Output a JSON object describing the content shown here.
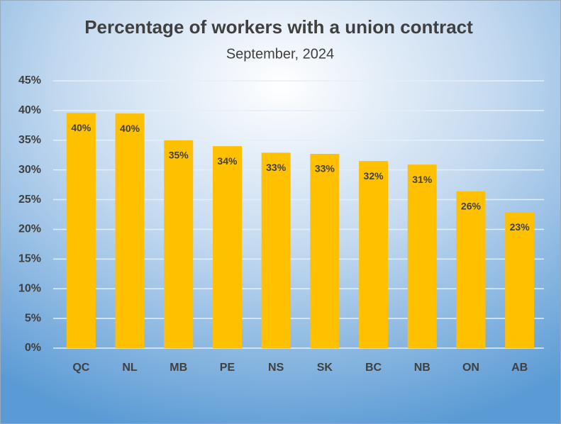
{
  "chart_data": {
    "type": "bar",
    "title": "Percentage of workers with a union contract",
    "subtitle": "September, 2024",
    "categories": [
      "QC",
      "NL",
      "MB",
      "PE",
      "NS",
      "SK",
      "BC",
      "NB",
      "ON",
      "AB"
    ],
    "values": [
      39.6,
      39.5,
      35.0,
      34.0,
      32.9,
      32.7,
      31.5,
      30.9,
      26.4,
      22.9
    ],
    "value_labels": [
      "40%",
      "40%",
      "35%",
      "34%",
      "33%",
      "33%",
      "32%",
      "31%",
      "26%",
      "23%"
    ],
    "color": "#ffc000",
    "ylim": [
      0,
      45
    ],
    "yticks": [
      {
        "value": 0,
        "label": "0%"
      },
      {
        "value": 5,
        "label": "5%"
      },
      {
        "value": 10,
        "label": "10%"
      },
      {
        "value": 15,
        "label": "15%"
      },
      {
        "value": 20,
        "label": "20%"
      },
      {
        "value": 25,
        "label": "25%"
      },
      {
        "value": 30,
        "label": "30%"
      },
      {
        "value": 35,
        "label": "35%"
      },
      {
        "value": 40,
        "label": "40%"
      },
      {
        "value": 45,
        "label": "45%"
      }
    ],
    "grid": true
  }
}
